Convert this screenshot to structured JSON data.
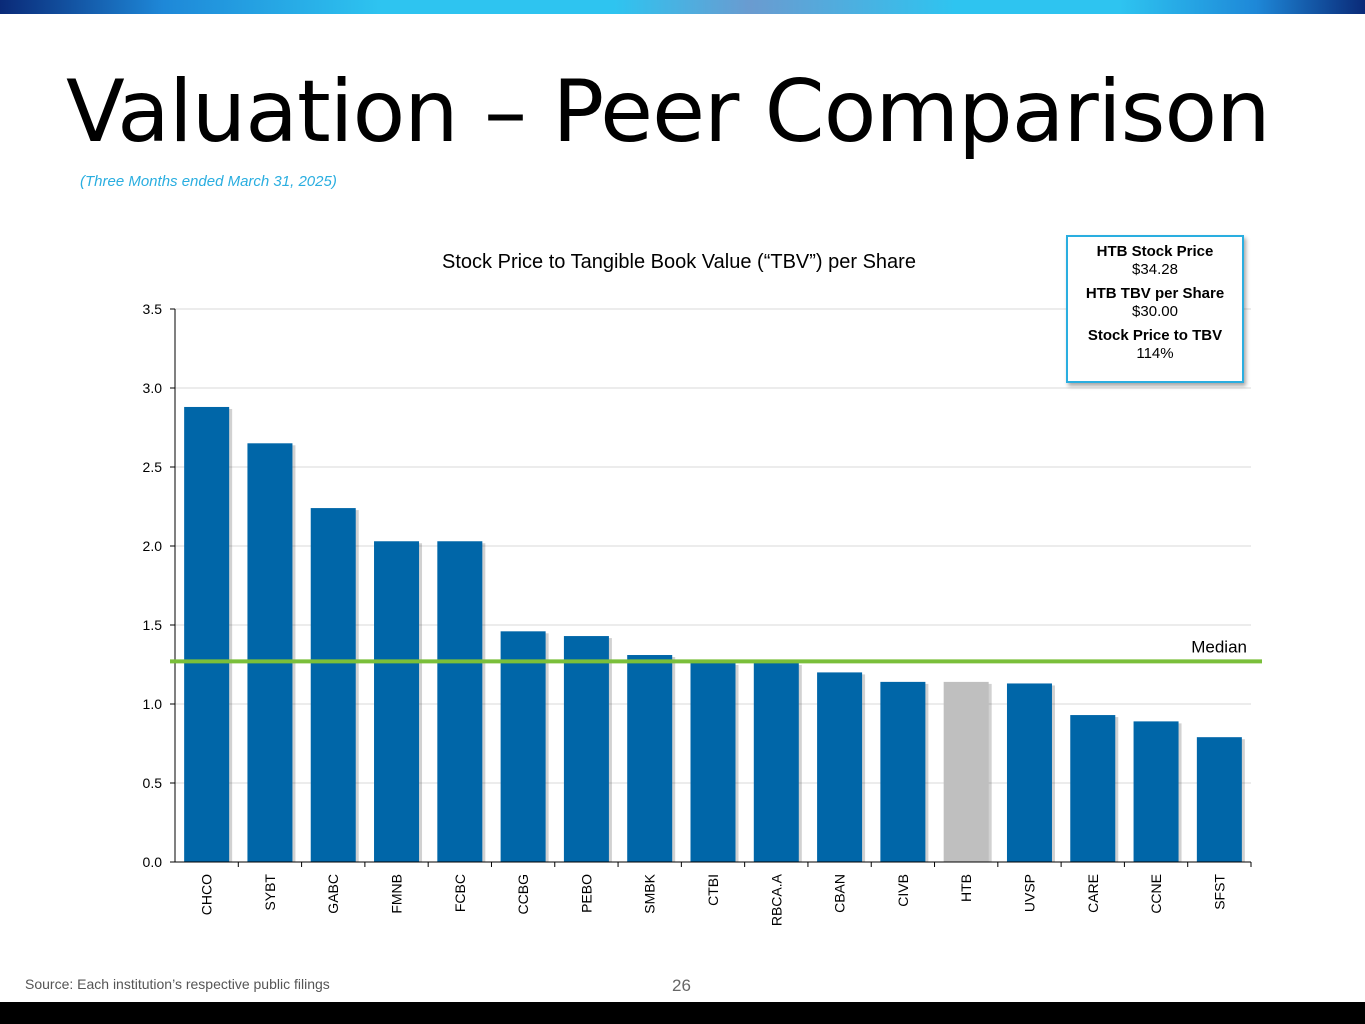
{
  "slide": {
    "title": "Valuation – Peer Comparison",
    "subtitle": "(Three Months ended March 31, 2025)",
    "source": "Source: Each institution’s respective public filings",
    "page_number": "26"
  },
  "info_box": {
    "items": [
      {
        "label": "HTB Stock Price",
        "value": "$34.28"
      },
      {
        "label": "HTB TBV per Share",
        "value": "$30.00"
      },
      {
        "label": "Stock Price to TBV",
        "value": "114%"
      }
    ]
  },
  "colors": {
    "bar": "#0066a8",
    "highlight_bar": "#bfbfbf",
    "median_line": "#7abf3a",
    "accent": "#2aaee0"
  },
  "chart_data": {
    "type": "bar",
    "title": "Stock Price to Tangible Book Value (“TBV”) per Share",
    "xlabel": "",
    "ylabel": "",
    "ylim": [
      0,
      3.5
    ],
    "yticks": [
      "0.0",
      "0.5",
      "1.0",
      "1.5",
      "2.0",
      "2.5",
      "3.0",
      "3.5"
    ],
    "grid": true,
    "categories": [
      "CHCO",
      "SYBT",
      "GABC",
      "FMNB",
      "FCBC",
      "CCBG",
      "PEBO",
      "SMBK",
      "CTBI",
      "RBCA.A",
      "CBAN",
      "CIVB",
      "HTB",
      "UVSP",
      "CARE",
      "CCNE",
      "SFST"
    ],
    "values": [
      2.88,
      2.65,
      2.24,
      2.03,
      2.03,
      1.46,
      1.43,
      1.31,
      1.26,
      1.26,
      1.2,
      1.14,
      1.14,
      1.13,
      0.93,
      0.89,
      0.79
    ],
    "highlight_category": "HTB",
    "median": {
      "label": "Median",
      "value": 1.27
    }
  }
}
